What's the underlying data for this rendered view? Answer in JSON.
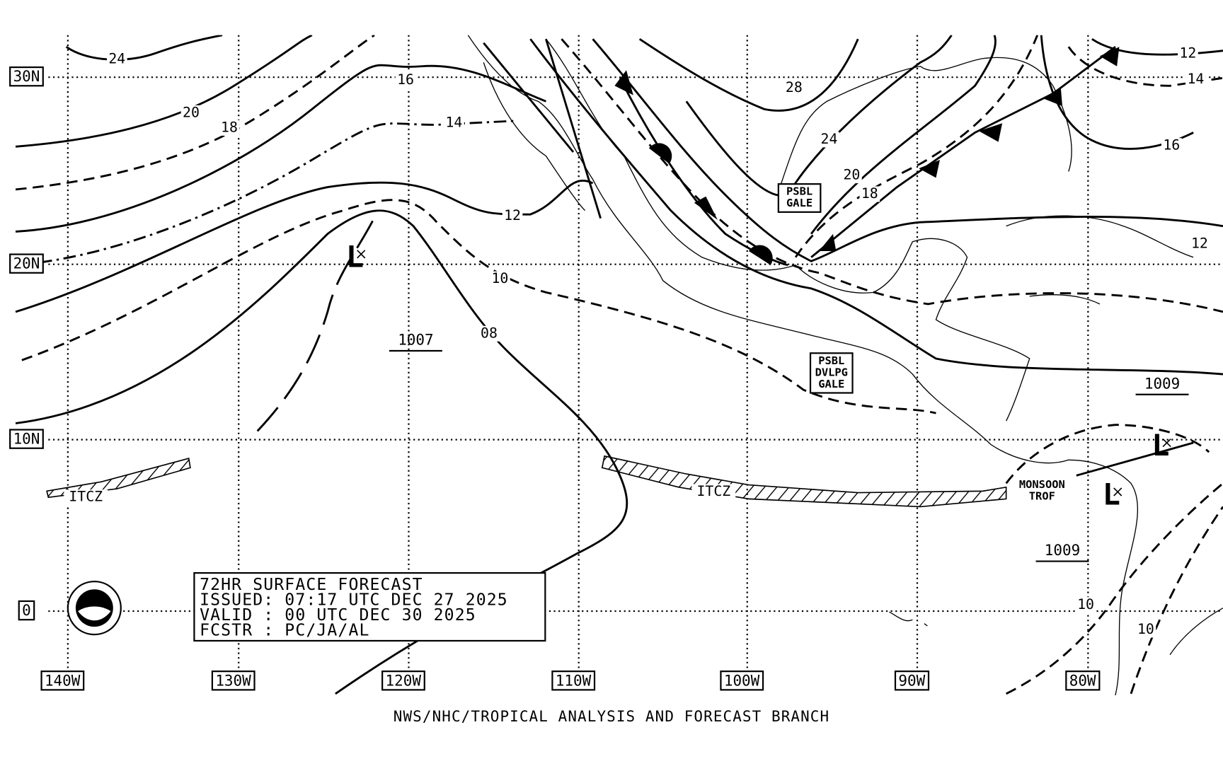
{
  "map": {
    "lat_labels": [
      "30N",
      "20N",
      "10N",
      "0"
    ],
    "lon_labels": [
      "140W",
      "130W",
      "120W",
      "110W",
      "100W",
      "90W",
      "80W"
    ],
    "isobar_labels": [
      "24",
      "20",
      "18",
      "16",
      "14",
      "12",
      "10",
      "08",
      "28",
      "24",
      "20",
      "18",
      "12",
      "14",
      "16",
      "12",
      "10",
      "10"
    ],
    "pressure_labels": [
      "1007",
      "1009",
      "1009"
    ],
    "low_labels": [
      "L",
      "L",
      "L"
    ],
    "itcz_labels": [
      "ITCZ",
      "ITCZ"
    ],
    "trough_label": [
      "MONSOON",
      "TROF"
    ],
    "warnings": [
      [
        "PSBL",
        "GALE"
      ],
      [
        "PSBL",
        "DVLPG",
        "GALE"
      ]
    ]
  },
  "info_box": {
    "lines": [
      "72HR SURFACE FORECAST",
      "ISSUED: 07:17 UTC DEC 27 2025",
      "VALID : 00 UTC DEC 30 2025",
      "FCSTR : PC/JA/AL"
    ]
  },
  "footer": "NWS/NHC/TROPICAL ANALYSIS AND FORECAST BRANCH"
}
